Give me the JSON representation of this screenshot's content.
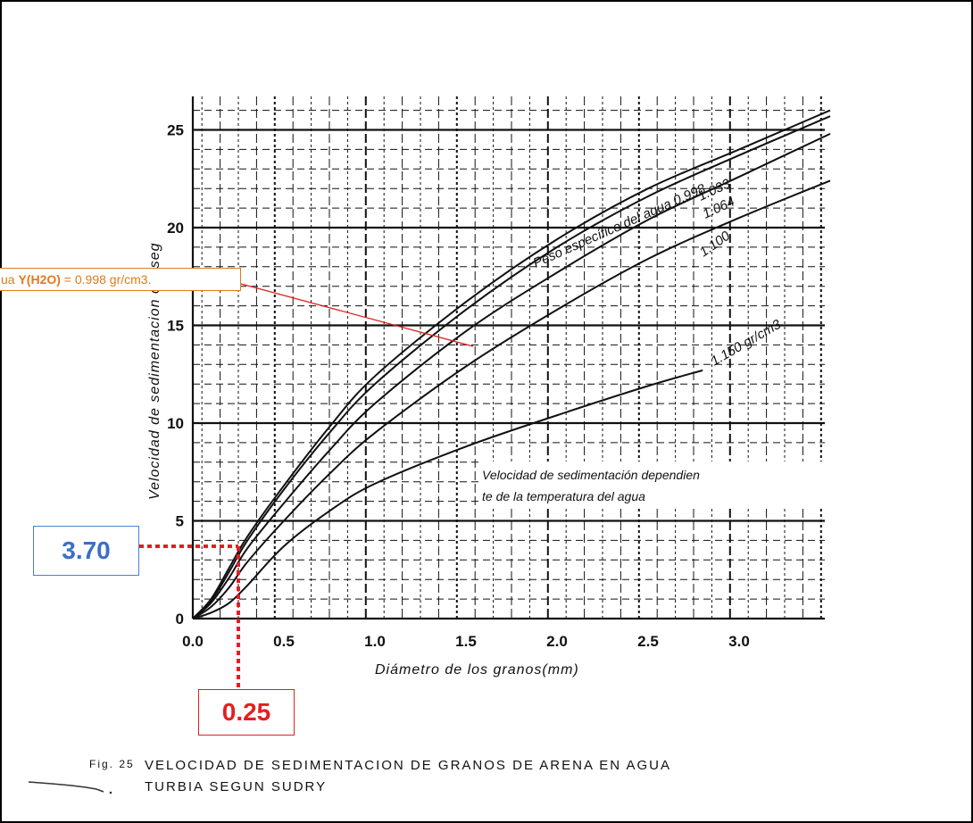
{
  "chart_data": {
    "type": "line",
    "xlabel": "Diámetro de los granos(mm)",
    "ylabel": "Velocidad de sedimentacion cm/seg",
    "x_ticks": [
      "0.0",
      "0.5",
      "1.0",
      "1.5",
      "2.0",
      "2.5",
      "3.0"
    ],
    "y_ticks": [
      "0",
      "5",
      "10",
      "15",
      "20",
      "25"
    ],
    "xlim": [
      0,
      3.5
    ],
    "ylim": [
      0,
      27
    ],
    "grid": true,
    "curve_labels": [
      "Peso específico del agua 0.998",
      "1.033",
      "1.064",
      "1.100",
      "1.150 gr/cm3"
    ],
    "note_line1": "Velocidad de sedimentación dependien",
    "note_line2": "te de la temperatura del agua",
    "caption_fig": "Fig. 25",
    "caption_line1": "VELOCIDAD DE SEDIMENTACION DE GRANOS DE ARENA EN AGUA",
    "caption_line2": "TURBIA SEGUN SUDRY",
    "series": [
      {
        "x": [
          0.0,
          0.1,
          0.2,
          0.3,
          0.5,
          0.75,
          1.0,
          1.5,
          2.0,
          2.5,
          3.0,
          3.5
        ],
        "y": [
          0.0,
          1.0,
          2.6,
          4.2,
          6.8,
          9.8,
          12.4,
          16.2,
          19.4,
          22.0,
          24.0,
          26.0
        ]
      },
      {
        "x": [
          0.0,
          0.1,
          0.2,
          0.3,
          0.5,
          0.75,
          1.0,
          1.5,
          2.0,
          2.5,
          3.0,
          3.5
        ],
        "y": [
          0.0,
          0.9,
          2.4,
          4.0,
          6.6,
          9.5,
          12.0,
          15.8,
          19.0,
          21.6,
          23.7,
          25.7
        ]
      },
      {
        "x": [
          0.0,
          0.1,
          0.2,
          0.3,
          0.5,
          0.75,
          1.0,
          1.5,
          2.0,
          2.5,
          3.0,
          3.5
        ],
        "y": [
          0.0,
          0.8,
          2.1,
          3.6,
          5.9,
          8.6,
          11.0,
          14.7,
          17.7,
          20.4,
          22.6,
          24.8
        ]
      },
      {
        "x": [
          0.0,
          0.1,
          0.2,
          0.3,
          0.5,
          0.75,
          1.0,
          1.5,
          2.0,
          2.5,
          3.0,
          3.5
        ],
        "y": [
          0.0,
          0.6,
          1.6,
          2.9,
          5.0,
          7.4,
          9.5,
          12.9,
          15.8,
          18.4,
          20.5,
          22.4
        ]
      },
      {
        "x": [
          0.0,
          0.1,
          0.2,
          0.3,
          0.5,
          0.75,
          1.0,
          1.5,
          2.0,
          2.5,
          2.8
        ],
        "y": [
          0.0,
          0.3,
          0.8,
          1.7,
          3.7,
          5.5,
          6.9,
          8.8,
          10.4,
          11.9,
          12.7
        ]
      }
    ],
    "reading": {
      "x": 0.25,
      "y": 3.7
    }
  },
  "annotations": {
    "water_prefix": "ua ",
    "water_symbol": "Y(H2O)",
    "water_value": " = 0.998 gr/cm3.",
    "velocity_value": "3.70",
    "diameter_value": "0.25"
  },
  "colors": {
    "grid": "#111111",
    "curve": "#111111",
    "callout_orange": "#e07a1a",
    "callout_blue": "#3a6fc8",
    "callout_red": "#e02020",
    "pointer_red": "#e02020"
  }
}
